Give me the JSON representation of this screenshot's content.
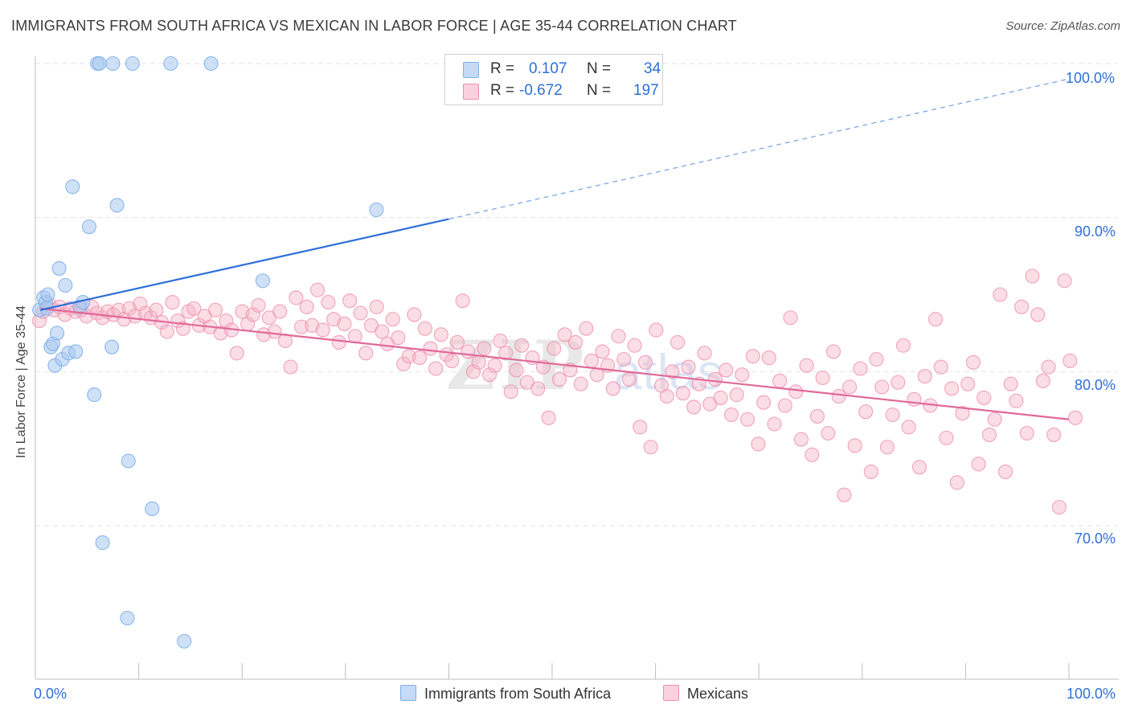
{
  "header": {
    "title": "IMMIGRANTS FROM SOUTH AFRICA VS MEXICAN IN LABOR FORCE | AGE 35-44 CORRELATION CHART",
    "source": "Source: ZipAtlas.com"
  },
  "watermark": {
    "zip": "ZIP",
    "atlas": "atlas"
  },
  "legend": {
    "series1": {
      "r_label": "R =",
      "r_value": "0.107",
      "n_label": "N =",
      "n_value": "34",
      "color": "#a8c8f0"
    },
    "series2": {
      "r_label": "R =",
      "r_value": "-0.672",
      "n_label": "N =",
      "n_value": "197",
      "color": "#f6b3c7"
    }
  },
  "bottom_legend": {
    "series1_label": "Immigrants from South Africa",
    "series2_label": "Mexicans"
  },
  "axes": {
    "x_min_label": "0.0%",
    "x_max_label": "100.0%",
    "y_ticks": [
      "100.0%",
      "90.0%",
      "80.0%",
      "70.0%"
    ],
    "ylabel": "In Labor Force | Age 35-44"
  },
  "chart_data": {
    "type": "scatter",
    "title": "IMMIGRANTS FROM SOUTH AFRICA VS MEXICAN IN LABOR FORCE | AGE 35-44 CORRELATION CHART",
    "xlabel": "",
    "ylabel": "In Labor Force | Age 35-44",
    "xlim": [
      0,
      100
    ],
    "ylim": [
      61.5,
      103
    ],
    "y_ticks": [
      70,
      80,
      90,
      100
    ],
    "grid": true,
    "series": [
      {
        "name": "Immigrants from South Africa",
        "color": "#7fb0ea",
        "fill": "#a8c8f0",
        "r": 0.107,
        "n": 34,
        "trend": {
          "x": [
            0.5,
            40
          ],
          "y": [
            84.0,
            89.9
          ],
          "extend_to": [
            100,
            99.0
          ]
        },
        "points": [
          [
            0.4,
            84.0
          ],
          [
            0.8,
            84.8
          ],
          [
            1.0,
            84.5
          ],
          [
            1.2,
            85.0
          ],
          [
            1.5,
            81.6
          ],
          [
            1.7,
            81.8
          ],
          [
            1.9,
            80.4
          ],
          [
            2.1,
            82.5
          ],
          [
            2.3,
            86.7
          ],
          [
            2.6,
            80.8
          ],
          [
            2.9,
            85.6
          ],
          [
            3.2,
            81.2
          ],
          [
            3.6,
            92.0
          ],
          [
            3.9,
            81.3
          ],
          [
            4.3,
            84.2
          ],
          [
            4.6,
            84.5
          ],
          [
            5.2,
            89.4
          ],
          [
            5.7,
            78.5
          ],
          [
            6.0,
            100.0
          ],
          [
            6.2,
            100.0
          ],
          [
            7.5,
            100.0
          ],
          [
            7.4,
            81.6
          ],
          [
            7.9,
            90.8
          ],
          [
            9.4,
            100.0
          ],
          [
            9.0,
            74.2
          ],
          [
            11.3,
            71.1
          ],
          [
            6.5,
            68.9
          ],
          [
            8.9,
            64.0
          ],
          [
            13.1,
            100.0
          ],
          [
            14.4,
            62.5
          ],
          [
            17.0,
            100.0
          ],
          [
            22.0,
            85.9
          ],
          [
            33.0,
            90.5
          ],
          [
            1.1,
            84.1
          ]
        ]
      },
      {
        "name": "Mexicans",
        "color": "#ee8fae",
        "fill": "#f6b3c7",
        "r": -0.672,
        "n": 197,
        "trend": {
          "x": [
            0.5,
            100
          ],
          "y": [
            84.1,
            76.9
          ]
        },
        "points": [
          [
            0.3,
            83.3
          ],
          [
            0.6,
            83.9
          ],
          [
            1.0,
            84.4
          ],
          [
            1.4,
            84.0
          ],
          [
            1.8,
            84.2
          ],
          [
            2.2,
            83.7
          ],
          [
            2.6,
            84.1
          ],
          [
            3.0,
            83.9
          ],
          [
            3.4,
            84.0
          ],
          [
            3.8,
            83.6
          ],
          [
            4.2,
            84.2
          ],
          [
            4.6,
            83.8
          ],
          [
            5.0,
            83.5
          ],
          [
            5.4,
            83.9
          ],
          [
            5.8,
            83.7
          ],
          [
            6.2,
            84.0
          ],
          [
            6.6,
            83.4
          ],
          [
            7.0,
            84.1
          ],
          [
            7.4,
            83.6
          ],
          [
            7.8,
            84.4
          ],
          [
            8.2,
            83.8
          ],
          [
            8.6,
            83.5
          ],
          [
            9.0,
            84.0
          ],
          [
            9.4,
            83.2
          ],
          [
            9.8,
            82.6
          ],
          [
            10.2,
            84.5
          ],
          [
            10.6,
            83.3
          ],
          [
            11.0,
            82.8
          ],
          [
            11.4,
            83.9
          ],
          [
            11.8,
            84.1
          ],
          [
            12.2,
            83.0
          ],
          [
            12.6,
            83.6
          ],
          [
            13.0,
            82.9
          ],
          [
            13.4,
            84.0
          ],
          [
            13.8,
            82.5
          ],
          [
            14.2,
            83.3
          ],
          [
            14.6,
            82.7
          ],
          [
            15.0,
            81.2
          ],
          [
            15.4,
            83.9
          ],
          [
            15.8,
            83.1
          ],
          [
            16.2,
            83.7
          ],
          [
            16.6,
            84.3
          ],
          [
            17.0,
            82.4
          ],
          [
            17.4,
            83.5
          ],
          [
            17.8,
            82.6
          ],
          [
            18.2,
            83.9
          ],
          [
            18.6,
            82.0
          ],
          [
            19.0,
            80.3
          ],
          [
            19.4,
            84.8
          ],
          [
            19.8,
            82.9
          ],
          [
            20.2,
            84.2
          ],
          [
            20.6,
            83.0
          ],
          [
            21.0,
            85.3
          ],
          [
            21.4,
            82.7
          ],
          [
            21.8,
            84.5
          ],
          [
            22.2,
            83.4
          ],
          [
            22.6,
            81.9
          ],
          [
            23.0,
            83.1
          ],
          [
            23.4,
            84.6
          ],
          [
            23.8,
            82.3
          ],
          [
            24.2,
            83.8
          ],
          [
            24.6,
            81.2
          ],
          [
            25.0,
            83.0
          ],
          [
            25.4,
            84.2
          ],
          [
            25.8,
            82.6
          ],
          [
            26.2,
            81.8
          ],
          [
            26.6,
            83.4
          ],
          [
            27.0,
            82.2
          ],
          [
            27.4,
            80.5
          ],
          [
            27.8,
            81.0
          ],
          [
            28.2,
            83.7
          ],
          [
            28.6,
            80.9
          ],
          [
            29.0,
            82.8
          ],
          [
            29.4,
            81.5
          ],
          [
            29.8,
            80.2
          ],
          [
            30.2,
            82.4
          ],
          [
            30.6,
            81.1
          ],
          [
            31.0,
            80.7
          ],
          [
            31.4,
            81.9
          ],
          [
            31.8,
            84.6
          ],
          [
            32.2,
            81.3
          ],
          [
            32.6,
            80.0
          ],
          [
            33.0,
            80.6
          ],
          [
            33.4,
            81.5
          ],
          [
            33.8,
            79.8
          ],
          [
            34.2,
            80.4
          ],
          [
            34.6,
            82.0
          ],
          [
            35.0,
            81.2
          ],
          [
            35.4,
            78.7
          ],
          [
            35.8,
            80.1
          ],
          [
            36.2,
            81.7
          ],
          [
            36.6,
            79.3
          ],
          [
            37.0,
            80.9
          ],
          [
            37.4,
            78.9
          ],
          [
            37.8,
            80.3
          ],
          [
            38.2,
            77.0
          ],
          [
            38.6,
            81.5
          ],
          [
            39.0,
            79.5
          ],
          [
            39.4,
            82.4
          ],
          [
            39.8,
            80.1
          ],
          [
            40.2,
            81.9
          ],
          [
            40.6,
            79.2
          ],
          [
            41.0,
            82.8
          ],
          [
            41.4,
            80.7
          ],
          [
            41.8,
            79.8
          ],
          [
            42.2,
            81.3
          ],
          [
            42.6,
            80.4
          ],
          [
            43.0,
            78.9
          ],
          [
            43.4,
            82.3
          ],
          [
            43.8,
            80.8
          ],
          [
            44.2,
            79.5
          ],
          [
            44.6,
            81.7
          ],
          [
            45.0,
            76.4
          ],
          [
            45.4,
            80.6
          ],
          [
            45.8,
            75.1
          ],
          [
            46.2,
            82.7
          ],
          [
            46.6,
            79.1
          ],
          [
            47.0,
            78.4
          ],
          [
            47.4,
            80.0
          ],
          [
            47.8,
            81.9
          ],
          [
            48.2,
            78.6
          ],
          [
            48.6,
            80.3
          ],
          [
            49.0,
            77.7
          ],
          [
            49.4,
            79.2
          ],
          [
            49.8,
            81.2
          ],
          [
            50.2,
            77.9
          ],
          [
            50.6,
            79.5
          ],
          [
            51.0,
            78.3
          ],
          [
            51.4,
            80.1
          ],
          [
            51.8,
            77.2
          ],
          [
            52.2,
            78.5
          ],
          [
            52.6,
            79.8
          ],
          [
            53.0,
            76.9
          ],
          [
            53.4,
            81.0
          ],
          [
            53.8,
            75.3
          ],
          [
            54.2,
            78.0
          ],
          [
            54.6,
            80.9
          ],
          [
            55.0,
            76.6
          ],
          [
            55.4,
            79.4
          ],
          [
            55.8,
            77.8
          ],
          [
            56.2,
            83.5
          ],
          [
            56.6,
            78.7
          ],
          [
            57.0,
            75.6
          ],
          [
            57.4,
            80.4
          ],
          [
            57.8,
            74.6
          ],
          [
            58.2,
            77.1
          ],
          [
            58.6,
            79.6
          ],
          [
            59.0,
            76.0
          ],
          [
            59.4,
            81.3
          ],
          [
            59.8,
            78.4
          ],
          [
            60.2,
            72.0
          ],
          [
            60.6,
            79.0
          ],
          [
            61.0,
            75.2
          ],
          [
            61.4,
            80.2
          ],
          [
            61.8,
            77.4
          ],
          [
            62.2,
            73.5
          ],
          [
            62.6,
            80.8
          ],
          [
            63.0,
            79.0
          ],
          [
            63.4,
            75.1
          ],
          [
            63.8,
            77.2
          ],
          [
            64.2,
            79.3
          ],
          [
            64.6,
            81.7
          ],
          [
            65.0,
            76.4
          ],
          [
            65.4,
            78.2
          ],
          [
            65.8,
            73.8
          ],
          [
            66.2,
            79.7
          ],
          [
            66.6,
            77.8
          ],
          [
            67.0,
            83.4
          ],
          [
            67.4,
            80.3
          ],
          [
            67.8,
            75.7
          ],
          [
            68.2,
            78.9
          ],
          [
            68.6,
            72.8
          ],
          [
            69.0,
            77.3
          ],
          [
            69.4,
            79.2
          ],
          [
            69.8,
            80.6
          ],
          [
            70.2,
            74.0
          ],
          [
            70.6,
            78.3
          ],
          [
            71.0,
            75.9
          ],
          [
            71.4,
            76.9
          ],
          [
            71.8,
            85.0
          ],
          [
            72.2,
            73.5
          ],
          [
            72.6,
            79.2
          ],
          [
            73.0,
            78.1
          ],
          [
            73.4,
            84.2
          ],
          [
            73.8,
            76.0
          ],
          [
            74.2,
            86.2
          ],
          [
            74.6,
            83.7
          ],
          [
            75.0,
            79.4
          ],
          [
            75.4,
            80.3
          ],
          [
            75.8,
            75.9
          ],
          [
            76.2,
            71.2
          ],
          [
            76.6,
            85.9
          ],
          [
            77.0,
            80.7
          ],
          [
            77.4,
            77.0
          ]
        ]
      }
    ]
  }
}
